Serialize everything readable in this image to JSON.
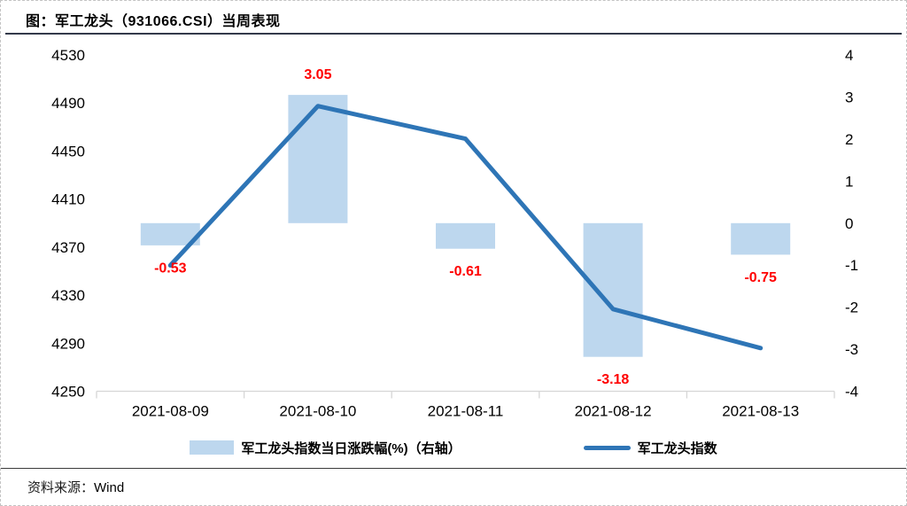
{
  "header": {
    "title": "图：军工龙头（931066.CSI）当周表现"
  },
  "legend": [
    {
      "type": "bar",
      "label": "军工龙头指数当日涨跌幅(%)（右轴）",
      "color": "#BDD7EE"
    },
    {
      "type": "line",
      "label": "军工龙头指数",
      "color": "#2E75B6"
    }
  ],
  "footer": {
    "source_label": "资料来源：",
    "source_value": "Wind"
  },
  "colors": {
    "bar_fill": "#BDD7EE",
    "line_stroke": "#2E75B6",
    "data_label": "#FF0000",
    "axis_line": "#D6D6D6",
    "tick_text": "#000000"
  },
  "chart_data": {
    "type": "combo",
    "categories": [
      "2021-08-09",
      "2021-08-10",
      "2021-08-11",
      "2021-08-12",
      "2021-08-13"
    ],
    "series": [
      {
        "name": "军工龙头指数当日涨跌幅(%)（右轴）",
        "type": "bar",
        "axis": "right",
        "color": "#BDD7EE",
        "values": [
          -0.53,
          3.05,
          -0.61,
          -3.18,
          -0.75
        ],
        "labels": [
          "-0.53",
          "3.05",
          "-0.61",
          "-3.18",
          "-0.75"
        ],
        "label_color": "#FF0000"
      },
      {
        "name": "军工龙头指数",
        "type": "line",
        "axis": "left",
        "color": "#2E75B6",
        "values": [
          4354.8,
          4487.4,
          4460.2,
          4318.4,
          4285.9
        ]
      }
    ],
    "left_axis": {
      "min": 4250,
      "max": 4530,
      "ticks": [
        4530,
        4490,
        4450,
        4410,
        4370,
        4330,
        4290,
        4250
      ]
    },
    "right_axis": {
      "min": -4,
      "max": 4,
      "ticks": [
        4,
        3,
        2,
        1,
        0,
        -1,
        -2,
        -3,
        -4
      ]
    },
    "grid": false,
    "legend_position": "bottom",
    "title": "图：军工龙头（931066.CSI）当周表现",
    "source": "资料来源：Wind"
  }
}
